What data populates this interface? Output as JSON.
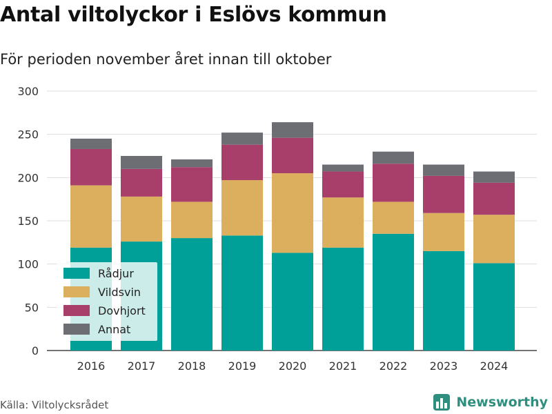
{
  "title": "Antal viltolyckor i Eslövs kommun",
  "subtitle": "För perioden november året innan till oktober",
  "source": "Källa: Viltolycksrådet",
  "brand": "Newsworthy",
  "colors": {
    "Rådjur": "#00a098",
    "Vildsvin": "#dcaf5e",
    "Dovhjort": "#a83f6b",
    "Annat": "#6d6d74",
    "grid": "#dddddd",
    "brand": "#2f8f7f"
  },
  "chart_data": {
    "type": "bar",
    "stacked": true,
    "categories": [
      "2016",
      "2017",
      "2018",
      "2019",
      "2020",
      "2021",
      "2022",
      "2023",
      "2024"
    ],
    "series": [
      {
        "name": "Rådjur",
        "values": [
          119,
          126,
          130,
          133,
          113,
          119,
          135,
          115,
          101
        ]
      },
      {
        "name": "Vildsvin",
        "values": [
          72,
          52,
          42,
          64,
          92,
          58,
          37,
          44,
          56
        ]
      },
      {
        "name": "Dovhjort",
        "values": [
          42,
          32,
          40,
          41,
          41,
          30,
          44,
          43,
          37
        ]
      },
      {
        "name": "Annat",
        "values": [
          12,
          15,
          9,
          14,
          18,
          8,
          14,
          13,
          13
        ]
      }
    ],
    "ylim": [
      0,
      300
    ],
    "yticks": [
      0,
      50,
      100,
      150,
      200,
      250,
      300
    ],
    "grid": true,
    "legend": "bottom-left"
  }
}
